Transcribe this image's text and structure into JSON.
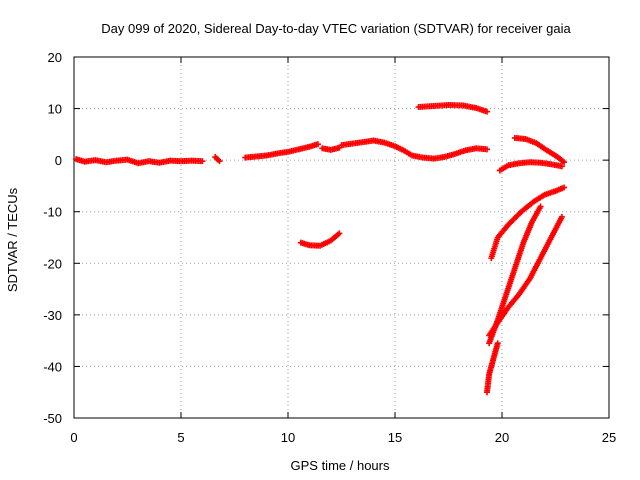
{
  "chart_data": {
    "type": "scatter",
    "title": "Day 099 of 2020, Sidereal Day-to-day VTEC variation (SDTVAR) for receiver gaia",
    "xlabel": "GPS time / hours",
    "ylabel": "SDTVAR / TECUs",
    "xlim": [
      0,
      25
    ],
    "ylim": [
      -50,
      20
    ],
    "xticks": [
      0,
      5,
      10,
      15,
      20,
      25
    ],
    "yticks": [
      -50,
      -40,
      -30,
      -20,
      -10,
      0,
      10,
      20
    ],
    "grid": true,
    "marker": "plus",
    "color": "#ff0000",
    "segments": [
      [
        [
          0.1,
          0.2
        ],
        [
          0.5,
          -0.3
        ],
        [
          1.0,
          0.0
        ],
        [
          1.5,
          -0.4
        ],
        [
          2.0,
          -0.1
        ],
        [
          2.5,
          0.1
        ],
        [
          3.0,
          -0.6
        ],
        [
          3.5,
          -0.2
        ],
        [
          4.0,
          -0.5
        ],
        [
          4.5,
          -0.1
        ],
        [
          5.0,
          -0.2
        ],
        [
          5.5,
          -0.1
        ],
        [
          6.0,
          -0.2
        ]
      ],
      [
        [
          6.6,
          0.6
        ],
        [
          6.8,
          -0.2
        ]
      ],
      [
        [
          8.0,
          0.5
        ],
        [
          8.5,
          0.7
        ],
        [
          9.0,
          0.9
        ],
        [
          9.5,
          1.3
        ],
        [
          10.0,
          1.6
        ],
        [
          10.5,
          2.1
        ],
        [
          11.0,
          2.6
        ],
        [
          11.4,
          3.1
        ]
      ],
      [
        [
          11.6,
          2.3
        ],
        [
          12.0,
          2.0
        ],
        [
          12.4,
          2.4
        ]
      ],
      [
        [
          12.5,
          2.9
        ],
        [
          13.0,
          3.2
        ],
        [
          13.5,
          3.5
        ],
        [
          14.0,
          3.8
        ],
        [
          14.5,
          3.4
        ],
        [
          15.0,
          2.7
        ],
        [
          15.4,
          1.9
        ],
        [
          15.8,
          0.9
        ],
        [
          16.3,
          0.5
        ],
        [
          16.8,
          0.3
        ],
        [
          17.3,
          0.6
        ],
        [
          17.8,
          1.2
        ],
        [
          18.3,
          1.9
        ],
        [
          18.8,
          2.3
        ],
        [
          19.3,
          2.1
        ]
      ],
      [
        [
          10.6,
          -16.0
        ],
        [
          11.0,
          -16.5
        ],
        [
          11.5,
          -16.6
        ],
        [
          12.0,
          -15.6
        ],
        [
          12.4,
          -14.2
        ]
      ],
      [
        [
          16.1,
          10.3
        ],
        [
          16.8,
          10.5
        ],
        [
          17.5,
          10.7
        ],
        [
          18.2,
          10.6
        ],
        [
          18.8,
          10.1
        ],
        [
          19.3,
          9.4
        ]
      ],
      [
        [
          20.6,
          4.3
        ],
        [
          21.1,
          4.1
        ],
        [
          21.6,
          3.3
        ],
        [
          22.1,
          1.9
        ],
        [
          22.6,
          0.6
        ],
        [
          22.9,
          -0.4
        ]
      ],
      [
        [
          19.9,
          -2.0
        ],
        [
          20.3,
          -1.0
        ],
        [
          20.8,
          -0.6
        ],
        [
          21.3,
          -0.4
        ],
        [
          21.8,
          -0.5
        ],
        [
          22.3,
          -0.8
        ],
        [
          22.8,
          -1.2
        ]
      ],
      [
        [
          19.5,
          -19.0
        ],
        [
          19.8,
          -15.0
        ],
        [
          20.3,
          -12.5
        ],
        [
          20.9,
          -10.0
        ],
        [
          21.5,
          -8.0
        ],
        [
          22.0,
          -6.7
        ],
        [
          22.5,
          -6.0
        ],
        [
          22.9,
          -5.3
        ]
      ],
      [
        [
          19.4,
          -34.0
        ],
        [
          19.8,
          -31.5
        ],
        [
          20.3,
          -28.5
        ],
        [
          20.8,
          -26.0
        ],
        [
          21.3,
          -23.0
        ],
        [
          21.8,
          -19.0
        ],
        [
          22.3,
          -15.0
        ],
        [
          22.8,
          -11.0
        ]
      ],
      [
        [
          19.4,
          -35.5
        ],
        [
          19.8,
          -31.0
        ],
        [
          20.2,
          -26.0
        ],
        [
          20.6,
          -21.0
        ],
        [
          21.0,
          -16.0
        ],
        [
          21.4,
          -12.0
        ],
        [
          21.8,
          -9.0
        ]
      ],
      [
        [
          19.3,
          -45.0
        ],
        [
          19.4,
          -41.5
        ],
        [
          19.6,
          -38.5
        ],
        [
          19.8,
          -35.5
        ]
      ]
    ]
  }
}
